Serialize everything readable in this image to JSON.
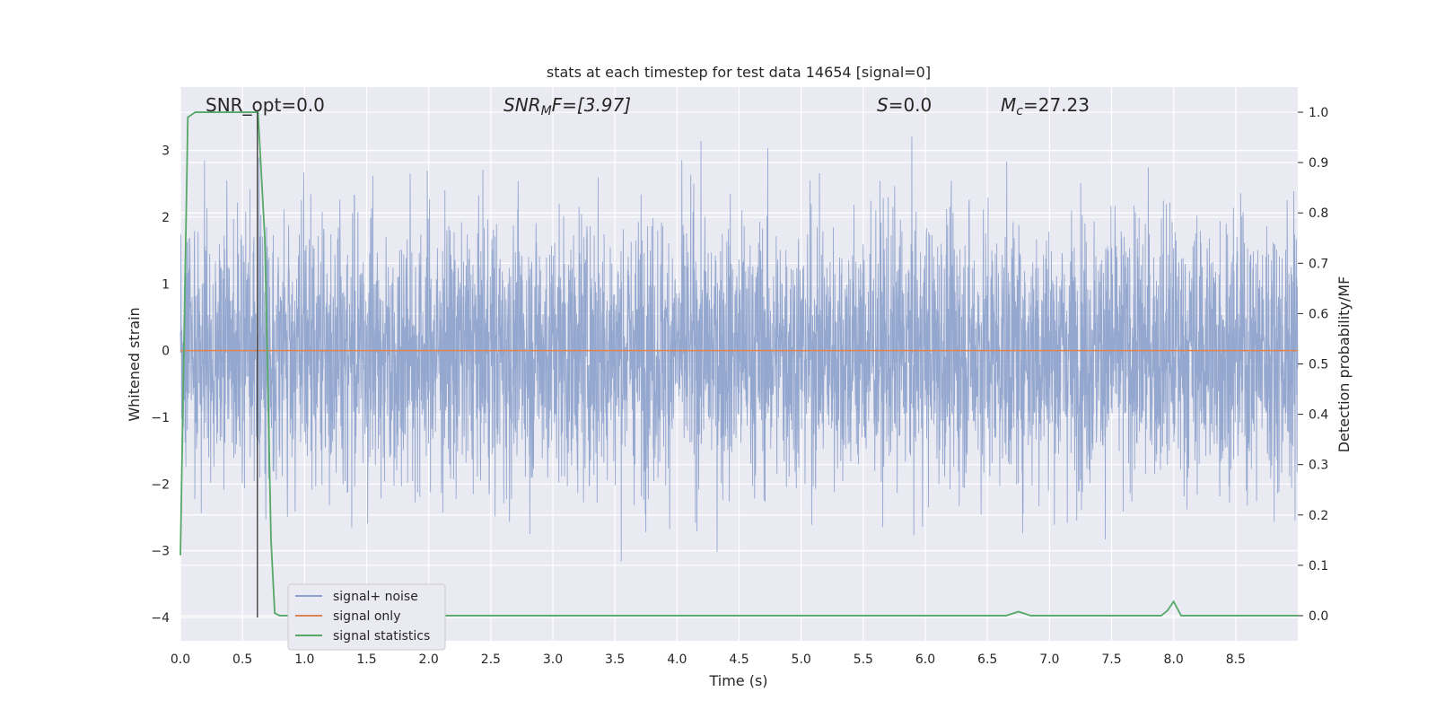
{
  "chart_data": {
    "type": "line",
    "title": "stats at each timestep for test data 14654 [signal=0]",
    "xlabel": "Time (s)",
    "ylabel": "Whitened strain",
    "y2label": "Detection probability/MF",
    "xlim": [
      0.0,
      9.0
    ],
    "ylim": [
      -4.35,
      3.95
    ],
    "y2lim": [
      -0.05,
      1.05
    ],
    "xticks": [
      "0.0",
      "0.5",
      "1.0",
      "1.5",
      "2.0",
      "2.5",
      "3.0",
      "3.5",
      "4.0",
      "4.5",
      "5.0",
      "5.5",
      "6.0",
      "6.5",
      "7.0",
      "7.5",
      "8.0",
      "8.5"
    ],
    "yticks": [
      "3",
      "2",
      "1",
      "0",
      "−1",
      "−2",
      "−3",
      "−4"
    ],
    "y2ticks": [
      "1.0",
      "0.9",
      "0.8",
      "0.7",
      "0.6",
      "0.5",
      "0.4",
      "0.3",
      "0.2",
      "0.1",
      "0.0"
    ],
    "grid": true,
    "legend_position": "lower-left",
    "annotations": {
      "snr_opt": "SNR_opt=0.0",
      "snr_mf_pre": "SNR",
      "snr_mf_sub": "M",
      "snr_mf_post": "F=[3.97]",
      "s_var": "S",
      "s_val": "=0.0",
      "mc_var": "M",
      "mc_sub": "c",
      "mc_val": "=27.23"
    },
    "vline_x": 0.62,
    "series": [
      {
        "name": "signal+ noise",
        "axis": "left",
        "color": "#8fa3cc",
        "note": "whitened noisy strain, roughly within [-4, 3.6]",
        "y_min": -4.0,
        "y_max": 3.6
      },
      {
        "name": "signal only",
        "axis": "left",
        "color": "#dd8452",
        "x": [
          0.0,
          9.0
        ],
        "y": [
          0.0,
          0.0
        ]
      },
      {
        "name": "signal statistics",
        "axis": "right",
        "color": "#55a868",
        "x": [
          0.0,
          0.06,
          0.12,
          0.2,
          0.3,
          0.4,
          0.5,
          0.6,
          0.625,
          0.68,
          0.73,
          0.76,
          0.8,
          0.9,
          1.5,
          3.0,
          4.2,
          5.0,
          6.0,
          6.65,
          6.75,
          6.85,
          7.0,
          7.5,
          7.9,
          7.95,
          8.0,
          8.06,
          8.2,
          9.0
        ],
        "y": [
          0.12,
          0.99,
          1.0,
          1.0,
          1.0,
          1.0,
          1.0,
          1.0,
          1.0,
          0.75,
          0.15,
          0.005,
          0.0,
          0.0,
          0.0,
          0.0,
          0.0,
          0.0,
          0.0,
          0.0,
          0.008,
          0.0,
          0.0,
          0.0,
          0.0,
          0.01,
          0.028,
          0.0,
          0.0,
          0.0
        ]
      }
    ]
  },
  "colors": {
    "background": "#eaeaf2",
    "grid": "#ffffff",
    "noise": "#8fa3cc",
    "signal": "#dd8452",
    "stats": "#55a868",
    "vline": "#4c4c4c"
  }
}
